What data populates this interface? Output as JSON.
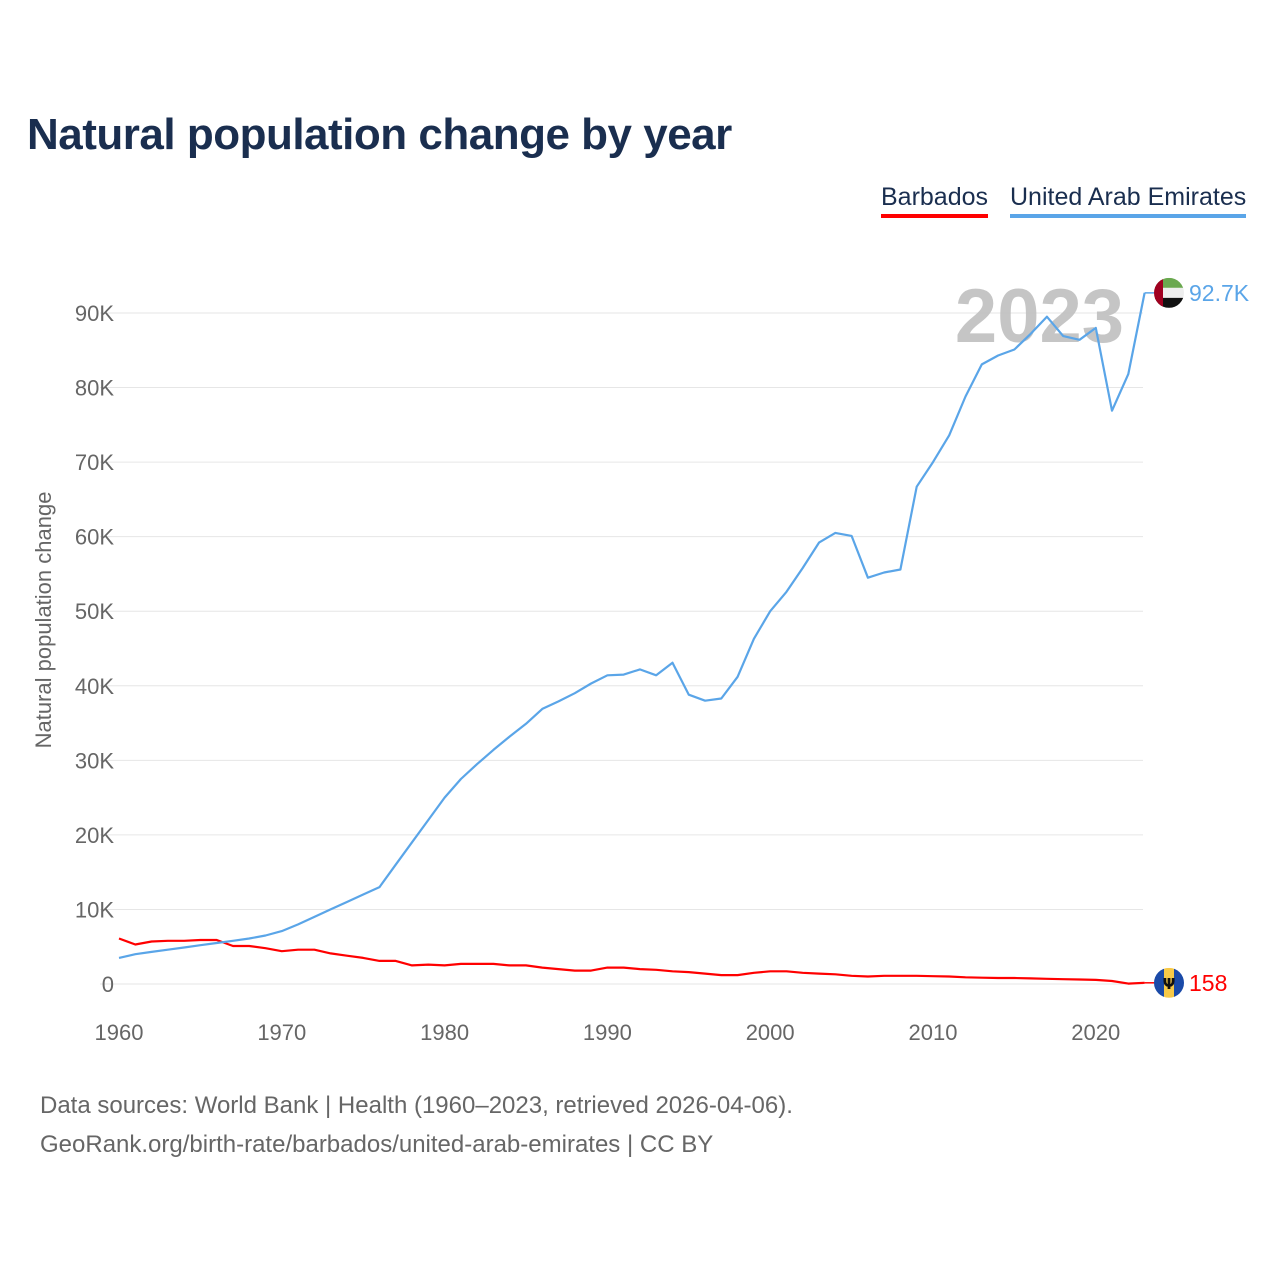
{
  "chart_data": {
    "type": "line",
    "title": "Natural population change by year",
    "xlabel": "",
    "ylabel": "Natural population change",
    "xlim": [
      1960,
      2023
    ],
    "ylim": [
      0,
      90000
    ],
    "x_ticks": [
      "1960",
      "1970",
      "1980",
      "1990",
      "2000",
      "2010",
      "2020"
    ],
    "y_ticks": [
      "0",
      "10K",
      "20K",
      "30K",
      "40K",
      "50K",
      "60K",
      "70K",
      "80K",
      "90K"
    ],
    "grid": true,
    "legend_position": "top-right",
    "year_label": "2023",
    "x": [
      1960,
      1961,
      1962,
      1963,
      1964,
      1965,
      1966,
      1967,
      1968,
      1969,
      1970,
      1971,
      1972,
      1973,
      1974,
      1975,
      1976,
      1977,
      1978,
      1979,
      1980,
      1981,
      1982,
      1983,
      1984,
      1985,
      1986,
      1987,
      1988,
      1989,
      1990,
      1991,
      1992,
      1993,
      1994,
      1995,
      1996,
      1997,
      1998,
      1999,
      2000,
      2001,
      2002,
      2003,
      2004,
      2005,
      2006,
      2007,
      2008,
      2009,
      2010,
      2011,
      2012,
      2013,
      2014,
      2015,
      2016,
      2017,
      2018,
      2019,
      2020,
      2021,
      2022,
      2023
    ],
    "series": [
      {
        "name": "Barbados",
        "color": "#ff0000",
        "end_label": "158",
        "flag": "barbados-flag",
        "values": [
          6100,
          5300,
          5700,
          5800,
          5800,
          5900,
          5900,
          5100,
          5100,
          4800,
          4400,
          4600,
          4600,
          4100,
          3800,
          3500,
          3100,
          3100,
          2500,
          2600,
          2500,
          2700,
          2700,
          2700,
          2500,
          2500,
          2200,
          2000,
          1800,
          1800,
          2200,
          2200,
          2000,
          1900,
          1700,
          1600,
          1400,
          1200,
          1200,
          1500,
          1700,
          1700,
          1500,
          1400,
          1300,
          1100,
          1000,
          1100,
          1100,
          1100,
          1050,
          1000,
          900,
          850,
          800,
          800,
          750,
          700,
          650,
          600,
          550,
          400,
          50,
          158
        ]
      },
      {
        "name": "United Arab Emirates",
        "color": "#5aa5e8",
        "end_label": "92.7K",
        "flag": "uae-flag",
        "values": [
          3500,
          4000,
          4300,
          4600,
          4900,
          5200,
          5500,
          5800,
          6100,
          6500,
          7100,
          8000,
          9000,
          10000,
          11000,
          12000,
          13000,
          16000,
          19000,
          22000,
          25000,
          27500,
          29500,
          31400,
          33200,
          34900,
          36900,
          37900,
          39000,
          40300,
          41400,
          41500,
          42200,
          41400,
          43100,
          38800,
          38000,
          38300,
          41200,
          46300,
          50000,
          52600,
          55800,
          59200,
          60500,
          60100,
          54500,
          55200,
          55600,
          66700,
          70000,
          73600,
          78800,
          83100,
          84300,
          85100,
          87200,
          89500,
          86900,
          86400,
          88000,
          76900,
          81800,
          92700
        ]
      }
    ]
  },
  "footer": {
    "line1": "Data sources: World Bank | Health (1960–2023, retrieved 2026-04-06).",
    "line2": "GeoRank.org/birth-rate/barbados/united-arab-emirates | CC BY"
  }
}
